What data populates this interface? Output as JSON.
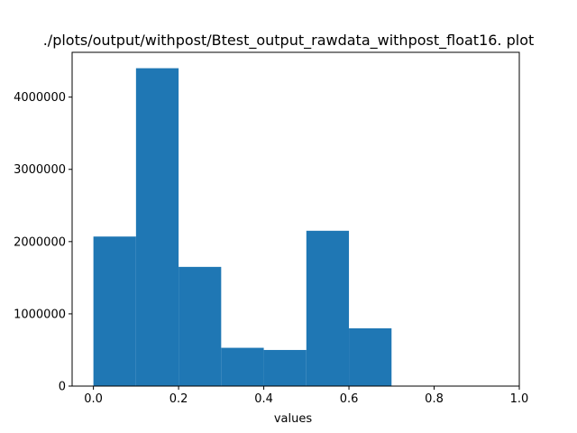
{
  "chart_data": {
    "type": "bar",
    "title": "./plots/output/withpost/Btest_output_rawdata_withpost_float16. plot",
    "xlabel": "values",
    "ylabel": "",
    "bins": [
      {
        "x0": 0.0,
        "x1": 0.1,
        "count": 2070000
      },
      {
        "x0": 0.1,
        "x1": 0.2,
        "count": 4400000
      },
      {
        "x0": 0.2,
        "x1": 0.3,
        "count": 1650000
      },
      {
        "x0": 0.3,
        "x1": 0.4,
        "count": 530000
      },
      {
        "x0": 0.4,
        "x1": 0.5,
        "count": 500000
      },
      {
        "x0": 0.5,
        "x1": 0.6,
        "count": 2150000
      },
      {
        "x0": 0.6,
        "x1": 0.7,
        "count": 800000
      },
      {
        "x0": 0.7,
        "x1": 0.8,
        "count": 0
      },
      {
        "x0": 0.8,
        "x1": 0.9,
        "count": 0
      },
      {
        "x0": 0.9,
        "x1": 1.0,
        "count": 0
      }
    ],
    "xlim": [
      -0.05,
      1.0
    ],
    "ylim": [
      0,
      4620000
    ],
    "xticks": [
      {
        "value": 0.0,
        "label": "0.0"
      },
      {
        "value": 0.2,
        "label": "0.2"
      },
      {
        "value": 0.4,
        "label": "0.4"
      },
      {
        "value": 0.6,
        "label": "0.6"
      },
      {
        "value": 0.8,
        "label": "0.8"
      },
      {
        "value": 1.0,
        "label": "1.0"
      }
    ],
    "yticks": [
      {
        "value": 0,
        "label": "0"
      },
      {
        "value": 1000000,
        "label": "1000000"
      },
      {
        "value": 2000000,
        "label": "2000000"
      },
      {
        "value": 3000000,
        "label": "3000000"
      },
      {
        "value": 4000000,
        "label": "4000000"
      }
    ],
    "bar_color": "#1f77b4",
    "grid": false
  }
}
